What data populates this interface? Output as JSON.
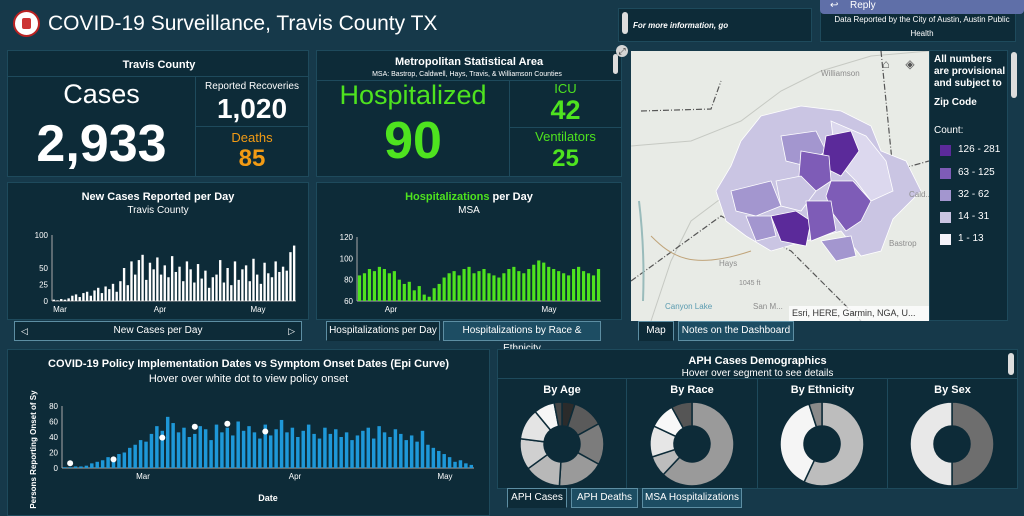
{
  "header": {
    "title": "COVID-19 Surveillance, Travis County TX",
    "more_info": "For more information, go",
    "data_reported": "Data Reported by the City of Austin, Austin Public Health",
    "reply": "Reply"
  },
  "travis": {
    "title": "Travis County",
    "cases_label": "Cases",
    "cases": "2,933",
    "recoveries_label": "Reported Recoveries",
    "recoveries": "1,020",
    "deaths_label": "Deaths",
    "deaths": "85"
  },
  "msa": {
    "title": "Metropolitan Statistical Area",
    "subtitle": "MSA: Bastrop, Caldwell, Hays, Travis, & Williamson Counties",
    "hosp_label": "Hospitalized",
    "hosp": "90",
    "icu_label": "ICU",
    "icu": "42",
    "vent_label": "Ventilators",
    "vent": "25"
  },
  "map": {
    "attribution": "Esri, HERE, Garmin, NGA, U...",
    "labels": {
      "williamson": "Williamson",
      "hays": "Hays",
      "bastrop": "Bastrop",
      "canyon": "Canyon Lake",
      "san_marcos": "San M...",
      "cald": "Cald...",
      "road": "1045 ft"
    }
  },
  "legend": {
    "note": "All numbers are provisional and subject to",
    "title": "Zip Code",
    "count_label": "Count:",
    "items": [
      {
        "label": "126 - 281",
        "color": "#5b2a9a"
      },
      {
        "label": "63 - 125",
        "color": "#7e5cb7"
      },
      {
        "label": "32 - 62",
        "color": "#a396cf"
      },
      {
        "label": "14 - 31",
        "color": "#cac5e3"
      },
      {
        "label": "1 - 13",
        "color": "#f4f3fa"
      }
    ]
  },
  "tabs": {
    "new_cases": "New Cases per Day",
    "hosp_day": "Hospitalizations per Day",
    "hosp_race": "Hospitalizations by Race & Ethnicity",
    "map": "Map",
    "notes": "Notes on the Dashboard",
    "aph_cases": "APH Cases",
    "aph_deaths": "APH Deaths",
    "msa_hosp": "MSA Hospitalizations"
  },
  "demo": {
    "title": "APH Cases Demographics",
    "subtitle": "Hover over segment to see details",
    "by_age": "By Age",
    "by_race": "By Race",
    "by_eth": "By Ethnicity",
    "by_sex": "By Sex"
  },
  "chart_data": [
    {
      "type": "bar",
      "title": "New Cases Reported per Day",
      "subtitle": "Travis County",
      "ylim": [
        0,
        100
      ],
      "yticks": [
        "100",
        "50",
        "25",
        "0"
      ],
      "xticks": [
        "Mar",
        "Apr",
        "May"
      ],
      "values": [
        2,
        1,
        3,
        2,
        4,
        8,
        10,
        6,
        12,
        14,
        8,
        16,
        20,
        12,
        22,
        18,
        26,
        14,
        30,
        50,
        24,
        60,
        40,
        62,
        70,
        32,
        58,
        48,
        66,
        40,
        54,
        36,
        68,
        44,
        52,
        30,
        60,
        48,
        28,
        56,
        34,
        46,
        20,
        36,
        40,
        62,
        28,
        50,
        24,
        60,
        32,
        48,
        54,
        30,
        64,
        40,
        26,
        58,
        42,
        36,
        60,
        44,
        52,
        46,
        74,
        84
      ]
    },
    {
      "type": "bar",
      "title": "Hospitalizations per Day",
      "subtitle": "MSA",
      "ylim": [
        60,
        120
      ],
      "yticks": [
        "120",
        "100",
        "80",
        "60"
      ],
      "xticks": [
        "Apr",
        "May"
      ],
      "values": [
        84,
        86,
        90,
        88,
        92,
        90,
        86,
        88,
        80,
        76,
        78,
        70,
        74,
        66,
        64,
        72,
        76,
        82,
        86,
        88,
        84,
        90,
        92,
        86,
        88,
        90,
        86,
        84,
        82,
        86,
        90,
        92,
        88,
        86,
        90,
        94,
        98,
        96,
        92,
        90,
        88,
        86,
        84,
        90,
        92,
        88,
        86,
        84,
        90
      ]
    },
    {
      "type": "bar",
      "title": "COVID-19 Policy Implementation Dates vs Symptom Onset Dates (Epi Curve)",
      "subtitle": "Hover over white dot to view policy onset",
      "xlabel": "Date",
      "ylabel": "Persons Reporting Onset of Sym",
      "ylim": [
        0,
        80
      ],
      "yticks": [
        "80",
        "60",
        "40",
        "20",
        "0"
      ],
      "xticks": [
        "Mar",
        "Apr",
        "May"
      ],
      "values": [
        1,
        1,
        2,
        2,
        3,
        6,
        8,
        10,
        14,
        12,
        18,
        20,
        26,
        30,
        36,
        34,
        44,
        54,
        48,
        66,
        58,
        46,
        52,
        40,
        44,
        54,
        50,
        36,
        56,
        46,
        52,
        42,
        60,
        48,
        54,
        46,
        38,
        56,
        42,
        50,
        62,
        46,
        52,
        40,
        48,
        56,
        44,
        38,
        52,
        44,
        50,
        40,
        46,
        36,
        42,
        48,
        52,
        38,
        54,
        46,
        40,
        50,
        44,
        36,
        42,
        34,
        48,
        30,
        26,
        22,
        18,
        14,
        8,
        10,
        6,
        4
      ]
    },
    {
      "type": "pie",
      "title": "By Age",
      "values": [
        5,
        12,
        16,
        18,
        14,
        12,
        12,
        8,
        3
      ],
      "colors": [
        "#2b2b2b",
        "#5a5a5a",
        "#7c7c7c",
        "#9a9a9a",
        "#b8b8b8",
        "#d0d0d0",
        "#e4e4e4",
        "#f6f6f6",
        "#444444"
      ]
    },
    {
      "type": "pie",
      "title": "By Race",
      "values": [
        62,
        8,
        12,
        10,
        8
      ],
      "colors": [
        "#9a9a9a",
        "#bcbcbc",
        "#e6e6e6",
        "#f8f8f8",
        "#555555"
      ]
    },
    {
      "type": "pie",
      "title": "By Ethnicity",
      "values": [
        57,
        38,
        5
      ],
      "colors": [
        "#bdbdbd",
        "#f5f5f5",
        "#8a8a8a"
      ]
    },
    {
      "type": "pie",
      "title": "By Sex",
      "values": [
        50,
        50
      ],
      "colors": [
        "#6e6e6e",
        "#e8e8e8"
      ]
    }
  ]
}
